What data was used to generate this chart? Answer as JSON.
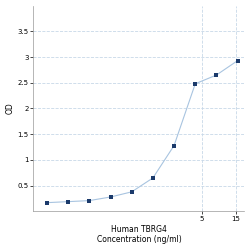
{
  "x": [
    0.0313,
    0.0625,
    0.125,
    0.25,
    0.5,
    1,
    2,
    4,
    8,
    16
  ],
  "y": [
    0.17,
    0.19,
    0.21,
    0.28,
    0.38,
    0.65,
    1.28,
    2.48,
    2.65,
    2.93
  ],
  "line_color": "#a8c4e0",
  "marker_color": "#1b3a6b",
  "marker_size": 3.5,
  "xlabel_line1": "Human TBRG4",
  "xlabel_line2": "Concentration (ng/ml)",
  "ylabel": "OD",
  "xlim_log": [
    -1.7,
    1.3
  ],
  "ylim": [
    0,
    4.0
  ],
  "yticks": [
    0.5,
    1,
    1.5,
    2,
    2.5,
    3,
    3.5
  ],
  "ytick_labels": [
    "0.5",
    "1",
    "1.5",
    "2",
    "2.5",
    "3",
    "3.5"
  ],
  "xtick_labels": [
    "",
    "",
    "",
    "",
    "",
    "",
    "",
    "",
    ""
  ],
  "x_label_ticks": [
    5,
    15
  ],
  "x_label_vals": [
    "5",
    "15"
  ],
  "grid_color": "#c8d8e8",
  "bg_color": "#ffffff",
  "label_fontsize": 5.5,
  "tick_fontsize": 5.0
}
